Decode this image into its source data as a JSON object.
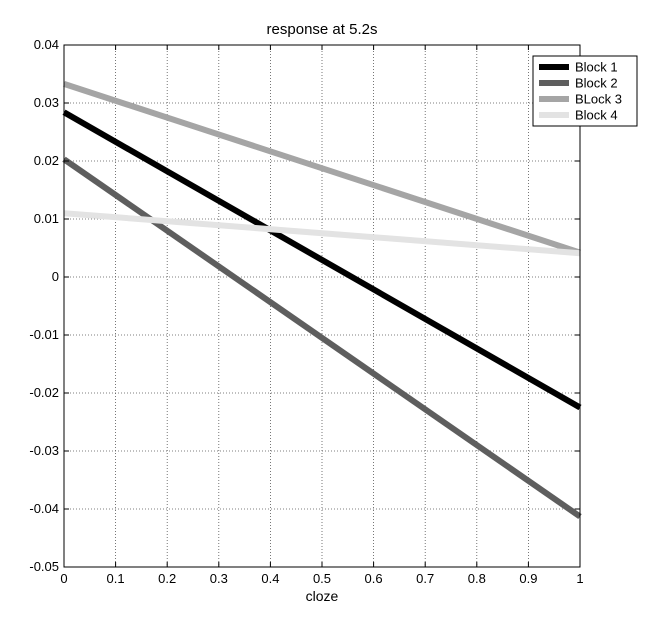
{
  "chart_data": {
    "type": "line",
    "title": "response at 5.2s",
    "xlabel": "cloze",
    "ylabel": "",
    "xlim": [
      0,
      1
    ],
    "ylim": [
      -0.05,
      0.04
    ],
    "xticks": [
      0,
      0.1,
      0.2,
      0.3,
      0.4,
      0.5,
      0.6,
      0.7,
      0.8,
      0.9,
      1
    ],
    "xtick_labels": [
      "0",
      "0.1",
      "0.2",
      "0.3",
      "0.4",
      "0.5",
      "0.6",
      "0.7",
      "0.8",
      "0.9",
      "1"
    ],
    "yticks": [
      -0.05,
      -0.04,
      -0.03,
      -0.02,
      -0.01,
      0,
      0.01,
      0.02,
      0.03,
      0.04
    ],
    "ytick_labels": [
      "-0.05",
      "-0.04",
      "-0.03",
      "-0.02",
      "-0.01",
      "0",
      "0.01",
      "0.02",
      "0.03",
      "0.04"
    ],
    "grid": true,
    "legend_position": "top-right",
    "series": [
      {
        "name": "Block 1",
        "color": "#000000",
        "x": [
          0,
          1
        ],
        "y": [
          0.0284,
          -0.0225
        ]
      },
      {
        "name": "Block 2",
        "color": "#5e5e5e",
        "x": [
          0,
          1
        ],
        "y": [
          0.0203,
          -0.0413
        ]
      },
      {
        "name": "BLock 3",
        "color": "#a5a5a5",
        "x": [
          0,
          1
        ],
        "y": [
          0.0333,
          0.0042
        ]
      },
      {
        "name": "Block 4",
        "color": "#e3e3e3",
        "x": [
          0,
          1
        ],
        "y": [
          0.011,
          0.0041
        ]
      }
    ]
  }
}
